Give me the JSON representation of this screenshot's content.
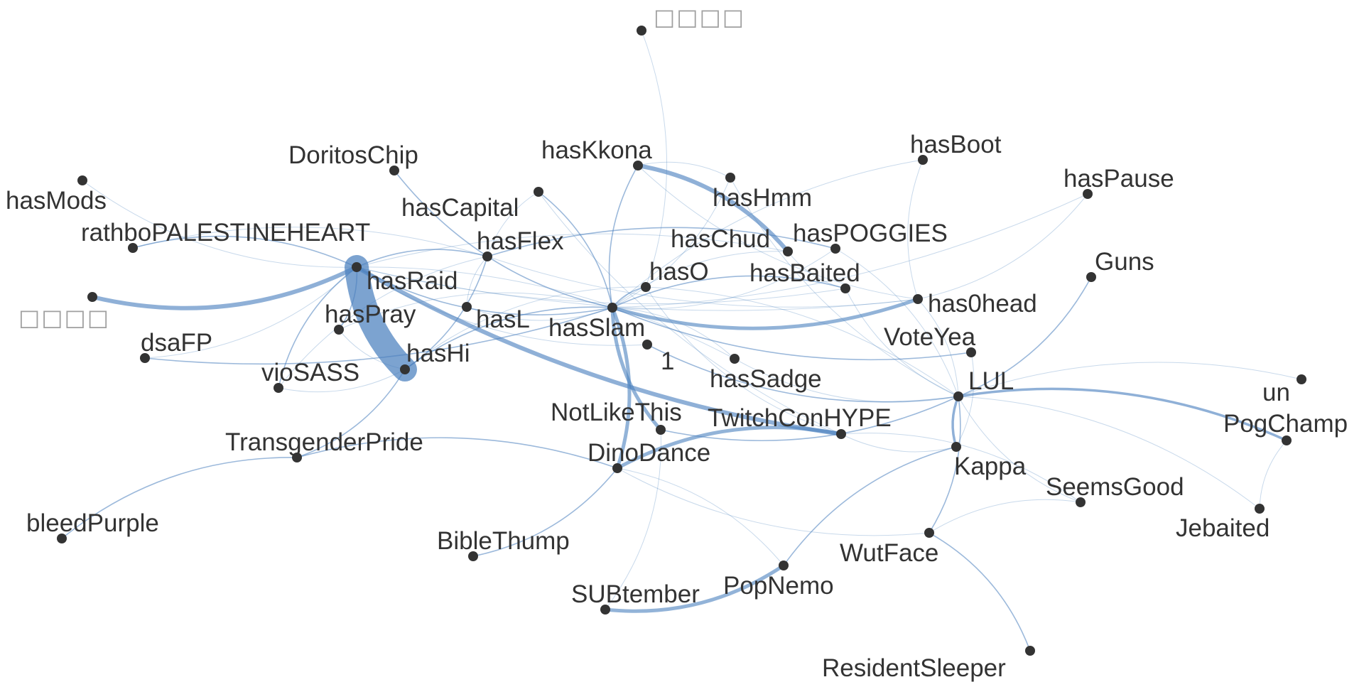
{
  "graph": {
    "node_color": "#333333",
    "edge_color": "#4a80be",
    "background": "#ffffff",
    "nodes": [
      {
        "id": "n_top",
        "label": "□□□□",
        "unreadable": true
      },
      {
        "id": "n_left",
        "label": "□□□□",
        "unreadable": true
      },
      {
        "id": "hasKkona",
        "label": "hasKkona"
      },
      {
        "id": "hasBoot",
        "label": "hasBoot"
      },
      {
        "id": "hasPause",
        "label": "hasPause"
      },
      {
        "id": "DoritosChip",
        "label": "DoritosChip"
      },
      {
        "id": "hasMods",
        "label": "hasMods"
      },
      {
        "id": "hasCapital",
        "label": "hasCapital"
      },
      {
        "id": "hasHmm",
        "label": "hasHmm"
      },
      {
        "id": "rathbo",
        "label": "rathboPALESTINEHEART"
      },
      {
        "id": "hasFlex",
        "label": "hasFlex"
      },
      {
        "id": "hasChud",
        "label": "hasChud"
      },
      {
        "id": "hasPOGGIES",
        "label": "hasPOGGIES"
      },
      {
        "id": "Guns",
        "label": "Guns"
      },
      {
        "id": "hasRaid",
        "label": "hasRaid"
      },
      {
        "id": "hasO",
        "label": "hasO"
      },
      {
        "id": "hasBaited",
        "label": "hasBaited"
      },
      {
        "id": "has0head",
        "label": "has0head"
      },
      {
        "id": "hasPray",
        "label": "hasPray"
      },
      {
        "id": "hasL",
        "label": "hasL"
      },
      {
        "id": "hasSlam",
        "label": "hasSlam"
      },
      {
        "id": "VoteYea",
        "label": "VoteYea"
      },
      {
        "id": "dsaFP",
        "label": "dsaFP"
      },
      {
        "id": "hasHi",
        "label": "hasHi"
      },
      {
        "id": "one",
        "label": "1"
      },
      {
        "id": "vioSASS",
        "label": "vioSASS"
      },
      {
        "id": "hasSadge",
        "label": "hasSadge"
      },
      {
        "id": "LUL",
        "label": "LUL"
      },
      {
        "id": "un",
        "label": "un"
      },
      {
        "id": "NotLikeThis",
        "label": "NotLikeThis"
      },
      {
        "id": "TwitchConHYPE",
        "label": "TwitchConHYPE"
      },
      {
        "id": "PogChamp",
        "label": "PogChamp"
      },
      {
        "id": "TransgenderPride",
        "label": "TransgenderPride"
      },
      {
        "id": "DinoDance",
        "label": "DinoDance"
      },
      {
        "id": "Kappa",
        "label": "Kappa"
      },
      {
        "id": "SeemsGood",
        "label": "SeemsGood"
      },
      {
        "id": "bleedPurple",
        "label": "bleedPurple"
      },
      {
        "id": "Jebaited",
        "label": "Jebaited"
      },
      {
        "id": "BibleThump",
        "label": "BibleThump"
      },
      {
        "id": "WutFace",
        "label": "WutFace"
      },
      {
        "id": "PopNemo",
        "label": "PopNemo"
      },
      {
        "id": "SUBtember",
        "label": "SUBtember"
      },
      {
        "id": "ResidentSleeper",
        "label": "ResidentSleeper"
      }
    ],
    "edges": [
      {
        "source": "hasRaid",
        "target": "hasHi",
        "weight": 10
      },
      {
        "source": "hasRaid",
        "target": "n_left",
        "weight": 3
      },
      {
        "source": "hasRaid",
        "target": "TwitchConHYPE",
        "weight": 3
      },
      {
        "source": "hasKkona",
        "target": "hasChud",
        "weight": 3
      },
      {
        "source": "hasSlam",
        "target": "has0head",
        "weight": 2
      },
      {
        "source": "hasSlam",
        "target": "DinoDance",
        "weight": 2
      },
      {
        "source": "hasSlam",
        "target": "NotLikeThis",
        "weight": 2
      },
      {
        "source": "DinoDance",
        "target": "TwitchConHYPE",
        "weight": 2
      },
      {
        "source": "SUBtember",
        "target": "PopNemo",
        "weight": 2
      },
      {
        "source": "LUL",
        "target": "PogChamp",
        "weight": 1.5
      },
      {
        "source": "LUL",
        "target": "Kappa",
        "weight": 1.5
      },
      {
        "source": "hasHi",
        "target": "hasSlam",
        "weight": 1
      },
      {
        "source": "hasRaid",
        "target": "hasSlam",
        "weight": 1
      },
      {
        "source": "hasRaid",
        "target": "hasFlex",
        "weight": 1
      },
      {
        "source": "hasHi",
        "target": "hasFlex",
        "weight": 1
      },
      {
        "source": "hasHi",
        "target": "TransgenderPride",
        "weight": 1
      },
      {
        "source": "hasRaid",
        "target": "vioSASS",
        "weight": 1
      },
      {
        "source": "hasRaid",
        "target": "hasPray",
        "weight": 1
      },
      {
        "source": "hasRaid",
        "target": "rathbo",
        "weight": 1
      },
      {
        "source": "hasSlam",
        "target": "hasBaited",
        "weight": 1
      },
      {
        "source": "hasSlam",
        "target": "hasCapital",
        "weight": 1
      },
      {
        "source": "hasSlam",
        "target": "hasKkona",
        "weight": 1
      },
      {
        "source": "hasSlam",
        "target": "VoteYea",
        "weight": 1
      },
      {
        "source": "hasSlam",
        "target": "DoritosChip",
        "weight": 1
      },
      {
        "source": "one",
        "target": "LUL",
        "weight": 1
      },
      {
        "source": "TransgenderPride",
        "target": "DinoDance",
        "weight": 1
      },
      {
        "source": "TransgenderPride",
        "target": "bleedPurple",
        "weight": 1
      },
      {
        "source": "DinoDance",
        "target": "BibleThump",
        "weight": 1
      },
      {
        "source": "NotLikeThis",
        "target": "LUL",
        "weight": 1
      },
      {
        "source": "LUL",
        "target": "WutFace",
        "weight": 1
      },
      {
        "source": "LUL",
        "target": "Guns",
        "weight": 1
      },
      {
        "source": "WutFace",
        "target": "ResidentSleeper",
        "weight": 1
      },
      {
        "source": "Kappa",
        "target": "PopNemo",
        "weight": 1
      },
      {
        "source": "hasFlex",
        "target": "hasPOGGIES",
        "weight": 1
      },
      {
        "source": "dsaFP",
        "target": "hasSlam",
        "weight": 1
      },
      {
        "source": "hasSlam",
        "target": "hasO",
        "weight": 1
      },
      {
        "source": "hasMods",
        "target": "hasRaid",
        "weight": 0.6
      },
      {
        "source": "n_top",
        "target": "hasO",
        "weight": 0.5
      },
      {
        "source": "hasSlam",
        "target": "hasHmm",
        "weight": 0.5
      },
      {
        "source": "hasSlam",
        "target": "hasBoot",
        "weight": 0.5
      },
      {
        "source": "hasSlam",
        "target": "hasPause",
        "weight": 0.5
      },
      {
        "source": "hasSlam",
        "target": "hasSadge",
        "weight": 0.5
      },
      {
        "source": "hasSlam",
        "target": "hasPOGGIES",
        "weight": 0.5
      },
      {
        "source": "hasSlam",
        "target": "hasChud",
        "weight": 0.5
      },
      {
        "source": "hasKkona",
        "target": "has0head",
        "weight": 0.5
      },
      {
        "source": "hasKkona",
        "target": "hasHmm",
        "weight": 0.5
      },
      {
        "source": "hasBoot",
        "target": "has0head",
        "weight": 0.5
      },
      {
        "source": "hasPause",
        "target": "has0head",
        "weight": 0.5
      },
      {
        "source": "hasCapital",
        "target": "TwitchConHYPE",
        "weight": 0.5
      },
      {
        "source": "hasHi",
        "target": "hasO",
        "weight": 0.5
      },
      {
        "source": "hasRaid",
        "target": "hasBaited",
        "weight": 0.5
      },
      {
        "source": "hasRaid",
        "target": "hasChud",
        "weight": 0.5
      },
      {
        "source": "hasRaid",
        "target": "one",
        "weight": 0.5
      },
      {
        "source": "hasRaid",
        "target": "hasSadge",
        "weight": 0.5
      },
      {
        "source": "hasRaid",
        "target": "has0head",
        "weight": 0.5
      },
      {
        "source": "hasPray",
        "target": "hasSlam",
        "weight": 0.5
      },
      {
        "source": "hasPray",
        "target": "hasHi",
        "weight": 0.5
      },
      {
        "source": "vioSASS",
        "target": "hasFlex",
        "weight": 0.5
      },
      {
        "source": "dsaFP",
        "target": "hasRaid",
        "weight": 0.5
      },
      {
        "source": "rathbo",
        "target": "hasFlex",
        "weight": 0.5
      },
      {
        "source": "hasFlex",
        "target": "has0head",
        "weight": 0.5
      },
      {
        "source": "hasFlex",
        "target": "hasCapital",
        "weight": 0.5
      },
      {
        "source": "hasO",
        "target": "TwitchConHYPE",
        "weight": 0.5
      },
      {
        "source": "hasO",
        "target": "LUL",
        "weight": 0.5
      },
      {
        "source": "hasChud",
        "target": "hasBaited",
        "weight": 0.5
      },
      {
        "source": "hasPOGGIES",
        "target": "LUL",
        "weight": 0.5
      },
      {
        "source": "hasBaited",
        "target": "LUL",
        "weight": 0.5
      },
      {
        "source": "has0head",
        "target": "LUL",
        "weight": 0.5
      },
      {
        "source": "hasHmm",
        "target": "LUL",
        "weight": 0.5
      },
      {
        "source": "VoteYea",
        "target": "Kappa",
        "weight": 0.5
      },
      {
        "source": "hasSadge",
        "target": "LUL",
        "weight": 0.5
      },
      {
        "source": "LUL",
        "target": "un",
        "weight": 0.5
      },
      {
        "source": "LUL",
        "target": "SeemsGood",
        "weight": 0.5
      },
      {
        "source": "LUL",
        "target": "Jebaited",
        "weight": 0.5
      },
      {
        "source": "TwitchConHYPE",
        "target": "Kappa",
        "weight": 0.5
      },
      {
        "source": "TwitchConHYPE",
        "target": "SeemsGood",
        "weight": 0.5
      },
      {
        "source": "PogChamp",
        "target": "Jebaited",
        "weight": 0.5
      },
      {
        "source": "WutFace",
        "target": "SeemsGood",
        "weight": 0.5
      },
      {
        "source": "DinoDance",
        "target": "WutFace",
        "weight": 0.5
      },
      {
        "source": "DinoDance",
        "target": "PopNemo",
        "weight": 0.5
      },
      {
        "source": "SUBtember",
        "target": "NotLikeThis",
        "weight": 0.5
      },
      {
        "source": "hasHi",
        "target": "vioSASS",
        "weight": 0.5
      },
      {
        "source": "hasL",
        "target": "hasSlam",
        "weight": 0.5
      },
      {
        "source": "hasL",
        "target": "hasFlex",
        "weight": 0.5
      }
    ]
  }
}
